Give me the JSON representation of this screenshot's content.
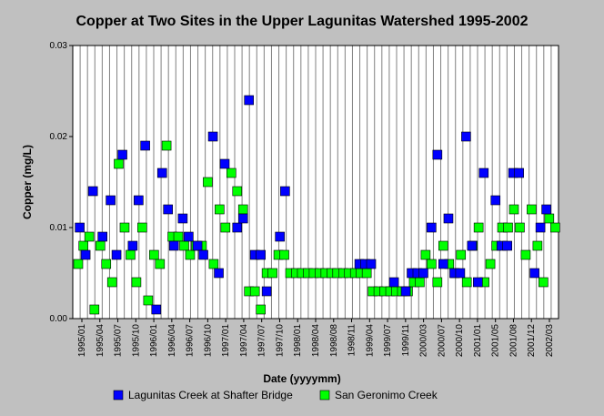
{
  "chart_data": {
    "type": "scatter",
    "title": "Copper at Two Sites in the Upper Lagunitas Watershed 1995-2002",
    "xlabel": "Date (yyyymm)",
    "ylabel": "Copper (mg/L)",
    "ylim": [
      0,
      0.03
    ],
    "y_ticks": [
      "0.00",
      "0.01",
      "0.02",
      "0.03"
    ],
    "y_tick_values": [
      0,
      0.01,
      0.02,
      0.03
    ],
    "x_ticks": [
      "1995/01",
      "1995/04",
      "1995/07",
      "1995/10",
      "1996/01",
      "1996/04",
      "1996/07",
      "1996/10",
      "1997/01",
      "1997/04",
      "1997/07",
      "1997/10",
      "1998/01",
      "1998/04",
      "1998/08",
      "1998/11",
      "1999/04",
      "1999/07",
      "1999/11",
      "2000/03",
      "2000/07",
      "2000/10",
      "2001/01",
      "2001/05",
      "2001/08",
      "2001/12",
      "2002/03"
    ],
    "grid": "vertical",
    "legend_position": "bottom",
    "colors": {
      "plot_background": "#ffffff",
      "page_background": "#c0c0c0",
      "grid": "#808080"
    },
    "series": [
      {
        "name": "Lagunitas Creek at Shafter Bridge",
        "color": "#0000ff",
        "values": [
          0.01,
          0.007,
          0.014,
          0.009,
          0.013,
          0.007,
          0.018,
          0.008,
          0.013,
          0.019,
          0.001,
          0.016,
          0.012,
          0.008,
          0.011,
          0.009,
          0.008,
          0.007,
          0.02,
          0.005,
          0.017,
          0.01,
          0.011,
          0.024,
          0.007,
          0.007,
          0.003,
          0.009,
          0.014,
          0.006,
          0.006,
          0.006,
          0.004,
          0.003,
          0.005,
          0.005,
          0.005,
          0.01,
          0.018,
          0.006,
          0.011,
          0.005,
          0.005,
          0.02,
          0.008,
          0.004,
          0.016,
          0.013,
          0.008,
          0.008,
          0.016,
          0.016,
          0.005,
          0.01,
          0.012
        ],
        "x_index": [
          0.2,
          1.0,
          2.0,
          3.3,
          4.4,
          5.2,
          6.0,
          7.4,
          8.2,
          9.1,
          10.6,
          11.4,
          12.2,
          13.0,
          14.2,
          15.0,
          16.2,
          17.0,
          18.3,
          19.1,
          19.9,
          21.6,
          22.4,
          23.2,
          24.0,
          24.8,
          25.6,
          27.4,
          28.1,
          38.2,
          39.0,
          39.8,
          42.9,
          44.5,
          45.3,
          46.1,
          46.9,
          48.0,
          48.8,
          49.6,
          50.3,
          51.1,
          51.9,
          52.7,
          53.5,
          54.3,
          55.1,
          56.7,
          57.5,
          58.3,
          59.1,
          59.9,
          62.0,
          62.8,
          63.6
        ]
      },
      {
        "name": "San Geronimo Creek",
        "color": "#00ff00",
        "values": [
          0.006,
          0.008,
          0.009,
          0.001,
          0.008,
          0.006,
          0.004,
          0.017,
          0.01,
          0.007,
          0.004,
          0.01,
          0.002,
          0.007,
          0.006,
          0.019,
          0.009,
          0.009,
          0.008,
          0.007,
          0.008,
          0.008,
          0.015,
          0.006,
          0.012,
          0.01,
          0.016,
          0.014,
          0.012,
          0.003,
          0.003,
          0.001,
          0.005,
          0.005,
          0.007,
          0.007,
          0.005,
          0.005,
          0.005,
          0.005,
          0.005,
          0.005,
          0.005,
          0.005,
          0.005,
          0.005,
          0.005,
          0.005,
          0.005,
          0.005,
          0.003,
          0.003,
          0.003,
          0.003,
          0.003,
          0.003,
          0.003,
          0.004,
          0.004,
          0.007,
          0.006,
          0.004,
          0.008,
          0.006,
          0.005,
          0.007,
          0.004,
          0.008,
          0.01,
          0.004,
          0.006,
          0.008,
          0.01,
          0.01,
          0.012,
          0.01,
          0.007,
          0.012,
          0.008,
          0.004,
          0.011,
          0.01
        ],
        "x_index": [
          0.0,
          0.7,
          1.5,
          2.2,
          3.0,
          3.8,
          4.6,
          5.5,
          6.3,
          7.1,
          7.9,
          8.7,
          9.5,
          10.3,
          11.1,
          12.0,
          12.8,
          13.6,
          14.4,
          15.2,
          16.0,
          16.8,
          17.6,
          18.4,
          19.2,
          20.0,
          20.8,
          21.6,
          22.4,
          23.2,
          24.0,
          24.8,
          25.6,
          26.4,
          27.2,
          28.0,
          28.8,
          29.6,
          30.4,
          31.2,
          32.0,
          32.8,
          33.6,
          34.4,
          35.2,
          36.0,
          36.8,
          37.6,
          38.4,
          39.2,
          40.0,
          40.8,
          41.6,
          42.4,
          43.2,
          44.0,
          44.8,
          45.6,
          46.4,
          47.2,
          48.0,
          48.8,
          49.6,
          50.4,
          51.2,
          52.0,
          52.8,
          53.6,
          54.4,
          55.2,
          56.0,
          56.8,
          57.6,
          58.4,
          59.2,
          60.0,
          60.8,
          61.6,
          62.4,
          63.2,
          64.0,
          64.8
        ]
      }
    ]
  }
}
